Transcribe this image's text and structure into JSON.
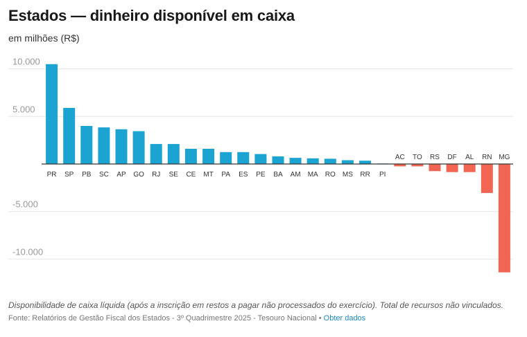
{
  "title": "Estados — dinheiro disponível em caixa",
  "subtitle": "em milhões (R$)",
  "note": "Disponibilidade de caixa líquida (após a inscrição em restos a pagar não processados do exercício). Total de recursos não vinculados.",
  "source": {
    "text": "Fonte: Relatórios de Gestão Fiscal dos Estados - 3º Quadrimestre 2025 - Tesouro Nacional",
    "separator": "•",
    "link_label": "Obter dados"
  },
  "colors": {
    "positive": "#1ba3d1",
    "negative": "#f26552",
    "grid": "#e6e6e6",
    "axis": "#333333",
    "tick": "#999999"
  },
  "chart_data": {
    "type": "bar",
    "title": "Estados — dinheiro disponível em caixa",
    "ylabel": "em milhões (R$)",
    "xlabel": "",
    "ylim": [
      -12000,
      12000
    ],
    "yticks": [
      10000,
      5000,
      0,
      -5000,
      -10000
    ],
    "ytick_labels": [
      "10.000",
      "5.000",
      "",
      "-5.000",
      "-10.000"
    ],
    "categories": [
      "PR",
      "SP",
      "PB",
      "SC",
      "AP",
      "GO",
      "RJ",
      "SE",
      "CE",
      "MT",
      "PA",
      "ES",
      "PE",
      "BA",
      "AM",
      "MA",
      "RO",
      "MS",
      "RR",
      "PI",
      "AC",
      "TO",
      "RS",
      "DF",
      "AL",
      "RN",
      "MG"
    ],
    "values": [
      10500,
      5900,
      4000,
      3850,
      3650,
      3450,
      2100,
      2100,
      1600,
      1600,
      1250,
      1250,
      1050,
      800,
      650,
      600,
      550,
      400,
      350,
      50,
      -250,
      -250,
      -750,
      -850,
      -850,
      -3050,
      -11400
    ],
    "grid": true,
    "legend": "none"
  }
}
